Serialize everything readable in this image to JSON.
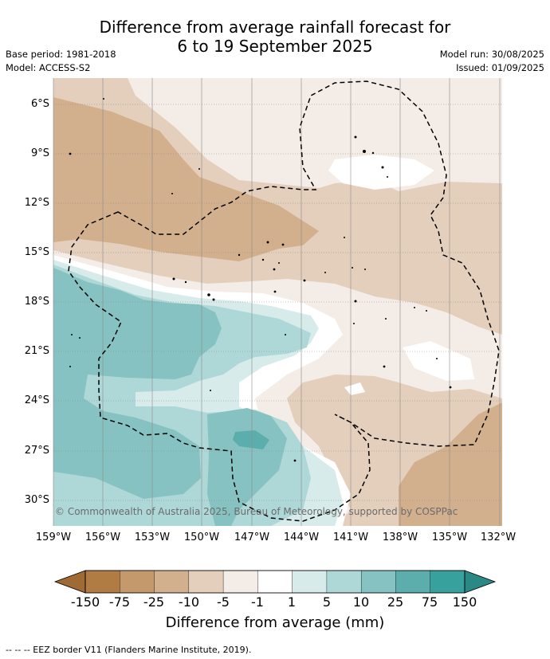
{
  "title_line1": "Difference from average rainfall forecast for",
  "title_line2": "6 to 19 September 2025",
  "base_period": "Base period: 1981-2018",
  "model": "Model: ACCESS-S2",
  "model_run": "Model run: 30/08/2025",
  "issued": "Issued: 01/09/2025",
  "credit": "© Commonwealth of Australia 2025, Bureau of Meteorology, supported by COSPPac",
  "lat_labels": [
    "6°S",
    "9°S",
    "12°S",
    "15°S",
    "18°S",
    "21°S",
    "24°S",
    "27°S",
    "30°S"
  ],
  "lon_labels": [
    "159°W",
    "156°W",
    "153°W",
    "150°W",
    "147°W",
    "144°W",
    "141°W",
    "138°W",
    "135°W",
    "132°W"
  ],
  "colorbar": {
    "ticks": [
      "-150",
      "-75",
      "-25",
      "-10",
      "-5",
      "-1",
      "1",
      "5",
      "10",
      "25",
      "75",
      "150"
    ],
    "colors": [
      "#b07c44",
      "#c49a6c",
      "#d2b08e",
      "#e4cfbc",
      "#f4ece6",
      "#ffffff",
      "#d6ebea",
      "#aed8d7",
      "#86c2c1",
      "#5caeac",
      "#36a19d"
    ],
    "extend_low": "#a06a35",
    "extend_high": "#2a8985",
    "label": "Difference from average (mm)"
  },
  "legend_text": "--  --  -- EEZ border V11 (Flanders Marine Institute, 2019)."
}
